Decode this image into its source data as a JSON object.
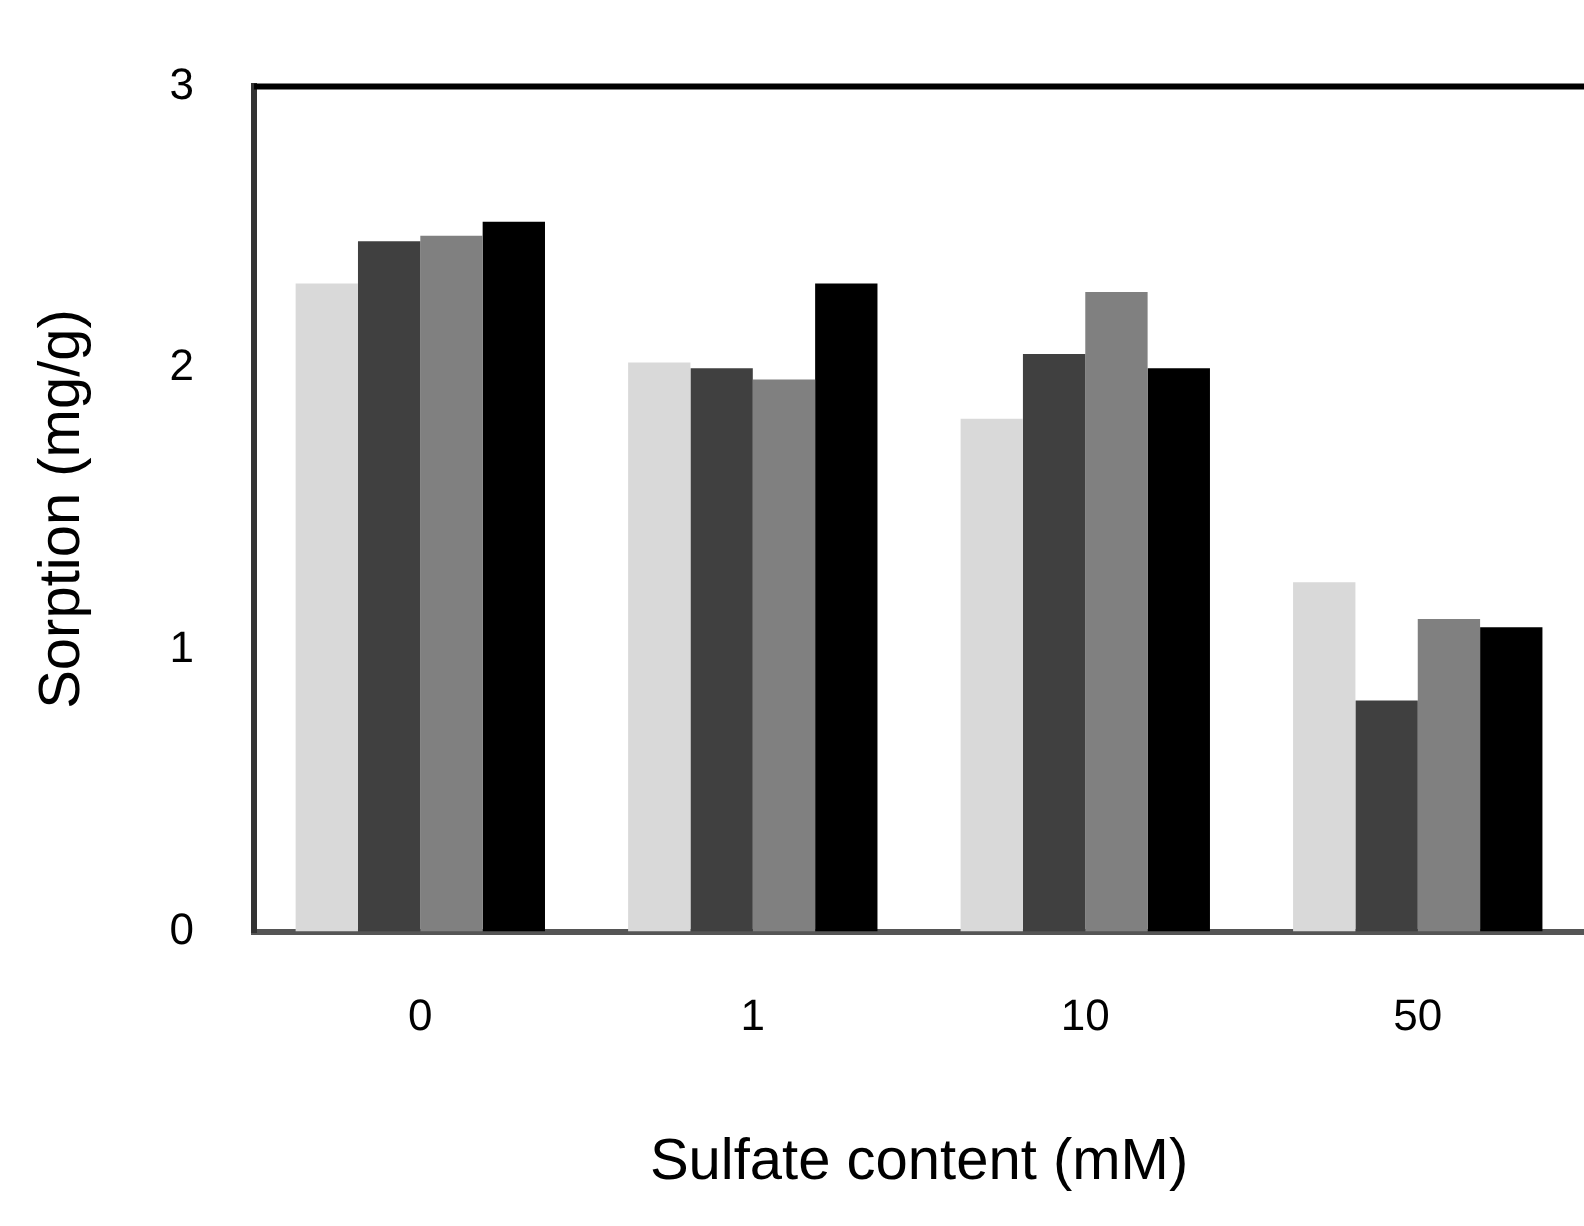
{
  "chart_data": {
    "type": "bar",
    "xlabel": "Sulfate content (mM)",
    "ylabel": "Sorption (mg/g)",
    "categories": [
      "0",
      "1",
      "10",
      "50"
    ],
    "series": [
      {
        "color": "#d9d9d9",
        "values": [
          2.3,
          2.02,
          1.82,
          1.24
        ]
      },
      {
        "color": "#404040",
        "values": [
          2.45,
          2.0,
          2.05,
          0.82
        ]
      },
      {
        "color": "#808080",
        "values": [
          2.47,
          1.96,
          2.27,
          1.11
        ]
      },
      {
        "color": "#000000",
        "values": [
          2.52,
          2.3,
          2.0,
          1.08
        ]
      }
    ],
    "ylim": [
      0,
      3
    ],
    "yticks": [
      0,
      1,
      2,
      3
    ],
    "grid": false,
    "legend": false
  }
}
